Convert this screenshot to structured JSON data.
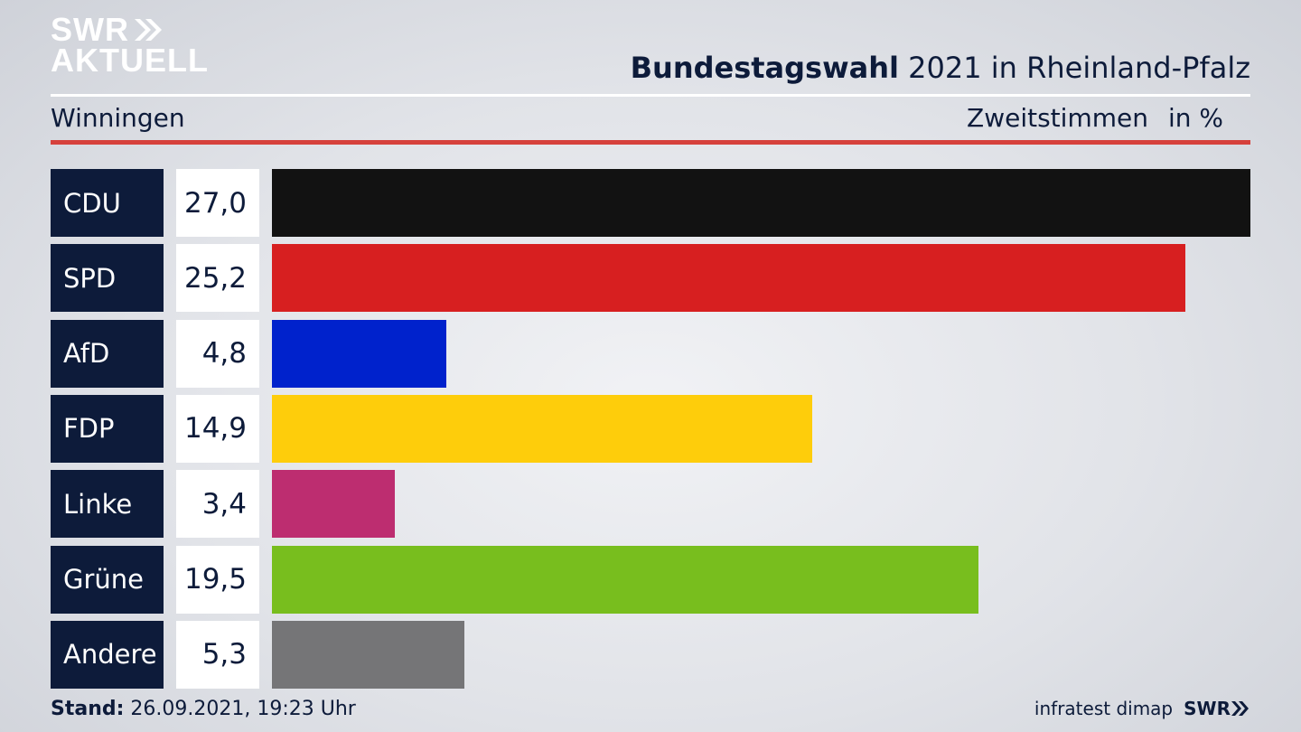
{
  "logo": {
    "line1": "SWR",
    "line2": "AKTUELL"
  },
  "header": {
    "title_bold": "Bundestagswahl",
    "title_rest": "2021 in Rheinland-Pfalz",
    "location": "Winningen",
    "measure": "Zweitstimmen",
    "unit": "in %"
  },
  "chart_data": {
    "type": "bar",
    "orientation": "horizontal",
    "categories": [
      "CDU",
      "SPD",
      "AfD",
      "FDP",
      "Linke",
      "Grüne",
      "Andere"
    ],
    "values": [
      27.0,
      25.2,
      4.8,
      14.9,
      3.4,
      19.5,
      5.3
    ],
    "value_labels": [
      "27,0",
      "25,2",
      "4,8",
      "14,9",
      "3,4",
      "19,5",
      "5,3"
    ],
    "colors": [
      "#121212",
      "#d71f20",
      "#0022cc",
      "#fecd0b",
      "#bd2d70",
      "#78be1e",
      "#757577"
    ],
    "xlim": [
      0,
      27.0
    ],
    "grid": false
  },
  "footer": {
    "stand_label": "Stand:",
    "stand_value": "26.09.2021, 19:23 Uhr",
    "source": "infratest dimap",
    "brand": "SWR"
  }
}
